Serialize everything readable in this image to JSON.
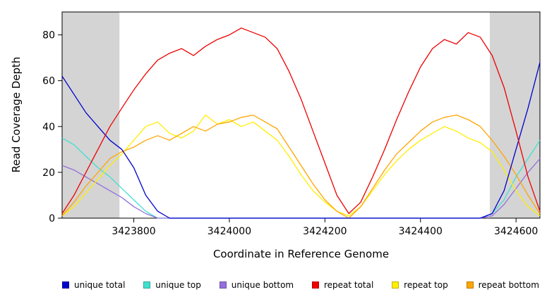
{
  "chart_data": {
    "type": "line",
    "title": "",
    "xlabel": "Coordinate in Reference Genome",
    "ylabel": "Read Coverage Depth",
    "xlim": [
      3423650,
      3424650
    ],
    "ylim": [
      0,
      90
    ],
    "x_ticks": [
      3423800,
      3424000,
      3424200,
      3424400,
      3424600
    ],
    "y_ticks": [
      0,
      20,
      40,
      60,
      80
    ],
    "grid": false,
    "legend_position": "bottom",
    "shaded_region_color": "#d4d4d4",
    "shaded_regions": [
      {
        "from": 3423650,
        "to": 3423770
      },
      {
        "from": 3424545,
        "to": 3424650
      }
    ],
    "x": [
      3423650,
      3423675,
      3423700,
      3423725,
      3423750,
      3423775,
      3423800,
      3423825,
      3423850,
      3423875,
      3423900,
      3423925,
      3423950,
      3423975,
      3424000,
      3424025,
      3424050,
      3424075,
      3424100,
      3424125,
      3424150,
      3424175,
      3424200,
      3424225,
      3424250,
      3424275,
      3424300,
      3424325,
      3424350,
      3424375,
      3424400,
      3424425,
      3424450,
      3424475,
      3424500,
      3424525,
      3424550,
      3424575,
      3424600,
      3424625,
      3424650
    ],
    "series": [
      {
        "name": "unique total",
        "color": "#0000cd",
        "values": [
          62,
          54,
          46,
          40,
          34,
          30,
          22,
          10,
          3,
          0,
          0,
          0,
          0,
          0,
          0,
          0,
          0,
          0,
          0,
          0,
          0,
          0,
          0,
          0,
          0,
          0,
          0,
          0,
          0,
          0,
          0,
          0,
          0,
          0,
          0,
          0,
          2,
          12,
          30,
          48,
          68
        ]
      },
      {
        "name": "unique top",
        "color": "#40e0d0",
        "values": [
          35,
          32,
          27,
          22,
          18,
          13,
          8,
          3,
          0,
          0,
          0,
          0,
          0,
          0,
          0,
          0,
          0,
          0,
          0,
          0,
          0,
          0,
          0,
          0,
          0,
          0,
          0,
          0,
          0,
          0,
          0,
          0,
          0,
          0,
          0,
          0,
          2,
          8,
          18,
          26,
          34
        ]
      },
      {
        "name": "unique bottom",
        "color": "#9370db",
        "values": [
          23,
          21,
          18,
          15,
          12,
          9,
          5,
          2,
          0,
          0,
          0,
          0,
          0,
          0,
          0,
          0,
          0,
          0,
          0,
          0,
          0,
          0,
          0,
          0,
          0,
          0,
          0,
          0,
          0,
          0,
          0,
          0,
          0,
          0,
          0,
          0,
          1,
          6,
          13,
          20,
          26
        ]
      },
      {
        "name": "repeat total",
        "color": "#ee0000",
        "values": [
          2,
          10,
          20,
          30,
          40,
          48,
          56,
          63,
          69,
          72,
          74,
          71,
          75,
          78,
          80,
          83,
          81,
          79,
          74,
          64,
          52,
          38,
          24,
          10,
          2,
          7,
          18,
          30,
          43,
          55,
          66,
          74,
          78,
          76,
          81,
          79,
          71,
          57,
          38,
          18,
          3
        ]
      },
      {
        "name": "repeat top",
        "color": "#ffee00",
        "values": [
          1,
          5,
          11,
          17,
          23,
          28,
          34,
          40,
          42,
          37,
          35,
          38,
          45,
          41,
          43,
          40,
          42,
          38,
          34,
          27,
          19,
          12,
          7,
          3,
          1,
          5,
          12,
          19,
          25,
          30,
          34,
          37,
          40,
          38,
          35,
          33,
          29,
          21,
          12,
          5,
          1
        ]
      },
      {
        "name": "repeat bottom",
        "color": "#ffa500",
        "values": [
          1,
          7,
          14,
          20,
          26,
          29,
          31,
          34,
          36,
          34,
          37,
          40,
          38,
          41,
          42,
          44,
          45,
          42,
          39,
          31,
          23,
          15,
          8,
          3,
          0,
          5,
          13,
          21,
          28,
          33,
          38,
          42,
          44,
          45,
          43,
          40,
          34,
          27,
          19,
          10,
          2
        ]
      }
    ]
  }
}
